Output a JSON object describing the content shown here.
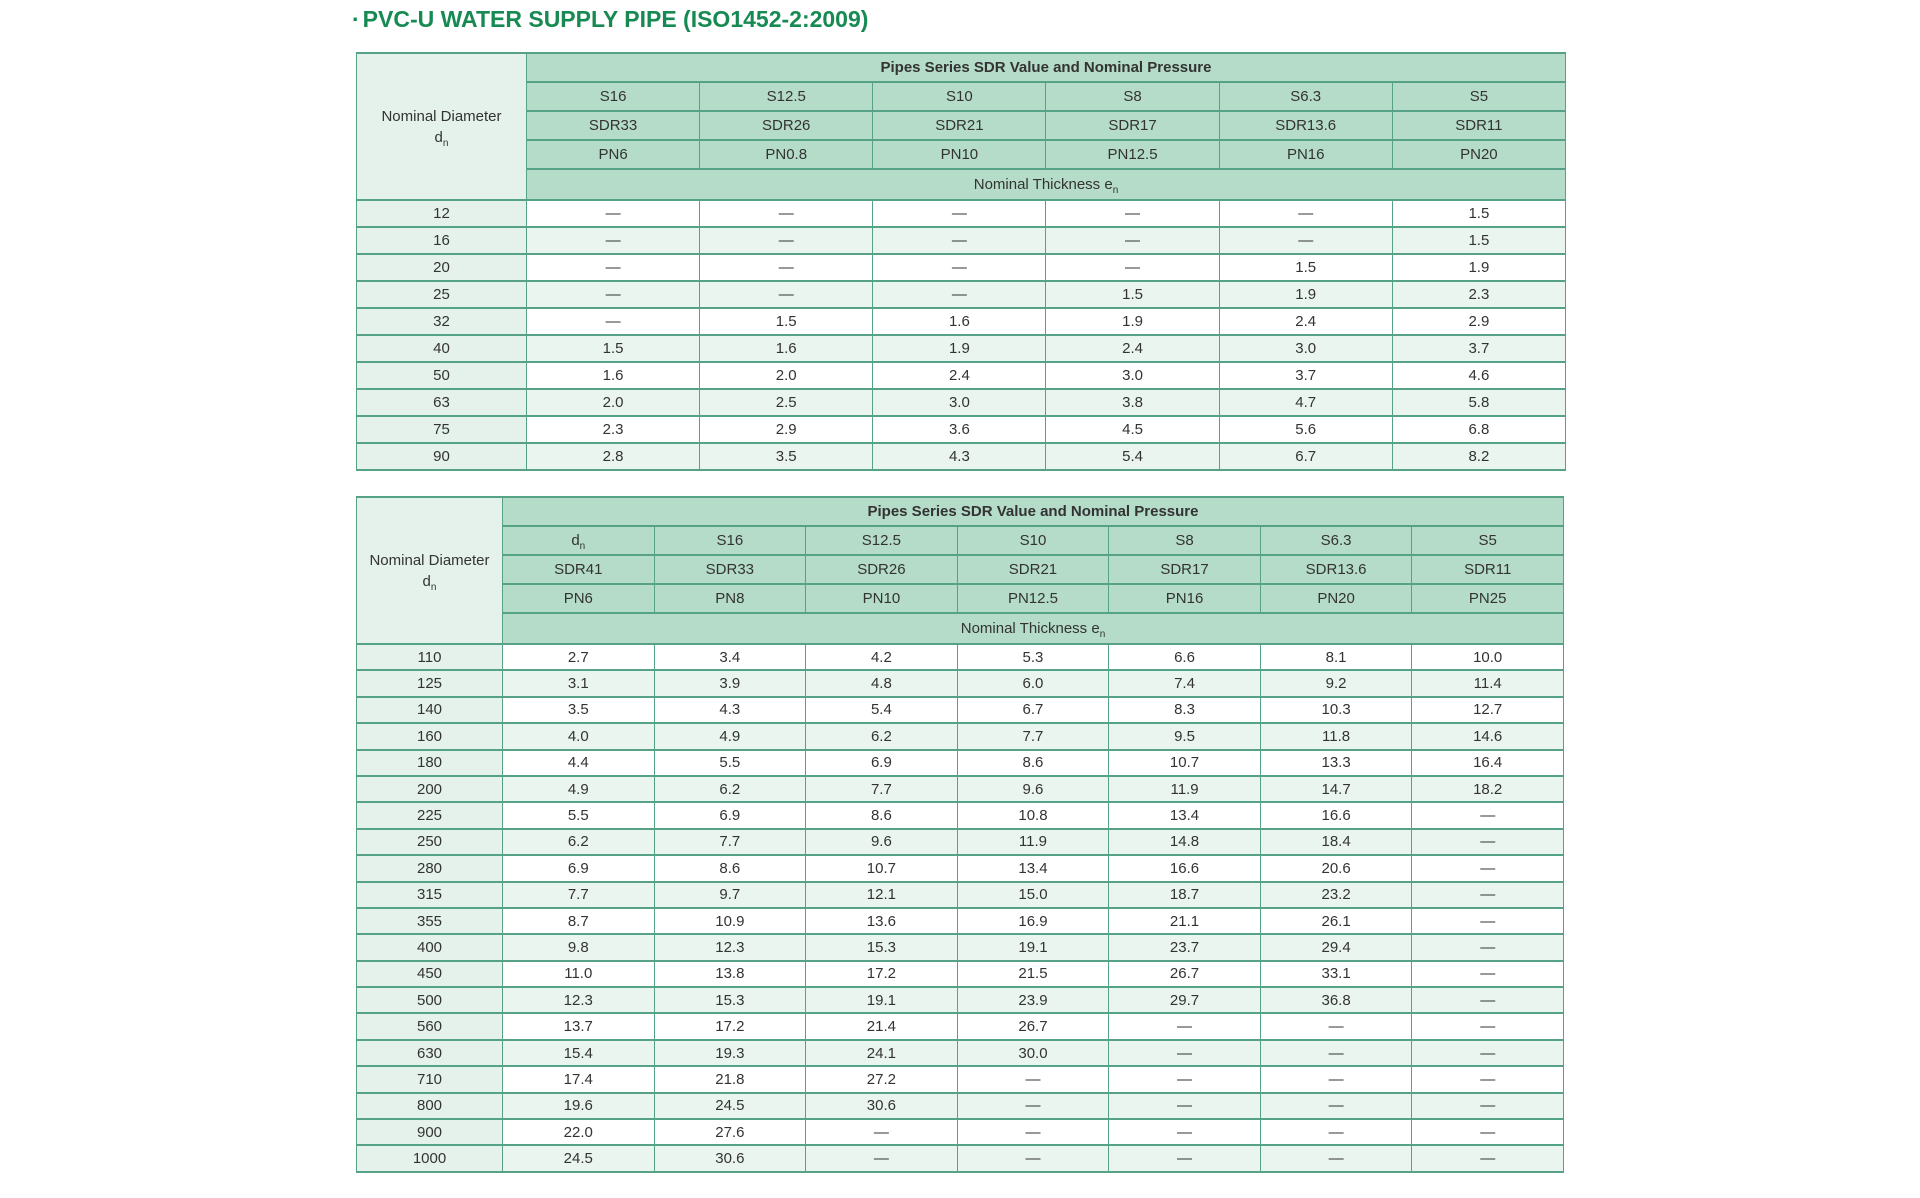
{
  "page": {
    "bullet": "·",
    "title": "PVC-U WATER SUPPLY PIPE (ISO1452-2:2009)"
  },
  "colors": {
    "title_green": "#168A52",
    "header_bg": "#B5DCC8",
    "left_col_bg": "#E5F2EC",
    "alt_row_bg": "#EAF5EF",
    "border": "#55A287",
    "text": "#333333"
  },
  "tables": [
    {
      "name": "small-diameters",
      "span_title": "Pipes Series SDR Value and Nominal Pressure",
      "left_header": {
        "line1": "Nominal Diameter",
        "symbol": "d",
        "subscript": "n"
      },
      "thickness_label": {
        "text": "Nominal Thickness ",
        "symbol": "e",
        "subscript": "n"
      },
      "series_row": [
        "S16",
        "S12.5",
        "S10",
        "S8",
        "S6.3",
        "S5"
      ],
      "sdr_row": [
        "SDR33",
        "SDR26",
        "SDR21",
        "SDR17",
        "SDR13.6",
        "SDR11"
      ],
      "pn_row": [
        "PN6",
        "PN0.8",
        "PN10",
        "PN12.5",
        "PN16",
        "PN20"
      ],
      "rows": [
        {
          "d": "12",
          "values": [
            "—",
            "—",
            "—",
            "—",
            "—",
            "1.5"
          ]
        },
        {
          "d": "16",
          "values": [
            "—",
            "—",
            "—",
            "—",
            "—",
            "1.5"
          ]
        },
        {
          "d": "20",
          "values": [
            "—",
            "—",
            "—",
            "—",
            "1.5",
            "1.9"
          ]
        },
        {
          "d": "25",
          "values": [
            "—",
            "—",
            "—",
            "1.5",
            "1.9",
            "2.3"
          ]
        },
        {
          "d": "32",
          "values": [
            "—",
            "1.5",
            "1.6",
            "1.9",
            "2.4",
            "2.9"
          ]
        },
        {
          "d": "40",
          "values": [
            "1.5",
            "1.6",
            "1.9",
            "2.4",
            "3.0",
            "3.7"
          ]
        },
        {
          "d": "50",
          "values": [
            "1.6",
            "2.0",
            "2.4",
            "3.0",
            "3.7",
            "4.6"
          ]
        },
        {
          "d": "63",
          "values": [
            "2.0",
            "2.5",
            "3.0",
            "3.8",
            "4.7",
            "5.8"
          ]
        },
        {
          "d": "75",
          "values": [
            "2.3",
            "2.9",
            "3.6",
            "4.5",
            "5.6",
            "6.8"
          ]
        },
        {
          "d": "90",
          "values": [
            "2.8",
            "3.5",
            "4.3",
            "5.4",
            "6.7",
            "8.2"
          ]
        }
      ]
    },
    {
      "name": "large-diameters",
      "span_title": "Pipes Series SDR Value and Nominal Pressure",
      "left_header": {
        "line1": "Nominal Diameter",
        "symbol": "d",
        "subscript": "n"
      },
      "thickness_label": {
        "text": "Nominal Thickness ",
        "symbol": "e",
        "subscript": "n"
      },
      "series_row": [
        {
          "t": "d",
          "sub": "n"
        },
        "S16",
        "S12.5",
        "S10",
        "S8",
        "S6.3",
        "S5"
      ],
      "sdr_row": [
        "SDR41",
        "SDR33",
        "SDR26",
        "SDR21",
        "SDR17",
        "SDR13.6",
        "SDR11"
      ],
      "pn_row": [
        "PN6",
        "PN8",
        "PN10",
        "PN12.5",
        "PN16",
        "PN20",
        "PN25"
      ],
      "rows": [
        {
          "d": "110",
          "values": [
            "2.7",
            "3.4",
            "4.2",
            "5.3",
            "6.6",
            "8.1",
            "10.0"
          ]
        },
        {
          "d": "125",
          "values": [
            "3.1",
            "3.9",
            "4.8",
            "6.0",
            "7.4",
            "9.2",
            "11.4"
          ]
        },
        {
          "d": "140",
          "values": [
            "3.5",
            "4.3",
            "5.4",
            "6.7",
            "8.3",
            "10.3",
            "12.7"
          ]
        },
        {
          "d": "160",
          "values": [
            "4.0",
            "4.9",
            "6.2",
            "7.7",
            "9.5",
            "11.8",
            "14.6"
          ]
        },
        {
          "d": "180",
          "values": [
            "4.4",
            "5.5",
            "6.9",
            "8.6",
            "10.7",
            "13.3",
            "16.4"
          ]
        },
        {
          "d": "200",
          "values": [
            "4.9",
            "6.2",
            "7.7",
            "9.6",
            "11.9",
            "14.7",
            "18.2"
          ]
        },
        {
          "d": "225",
          "values": [
            "5.5",
            "6.9",
            "8.6",
            "10.8",
            "13.4",
            "16.6",
            "—"
          ]
        },
        {
          "d": "250",
          "values": [
            "6.2",
            "7.7",
            "9.6",
            "11.9",
            "14.8",
            "18.4",
            "—"
          ]
        },
        {
          "d": "280",
          "values": [
            "6.9",
            "8.6",
            "10.7",
            "13.4",
            "16.6",
            "20.6",
            "—"
          ]
        },
        {
          "d": "315",
          "values": [
            "7.7",
            "9.7",
            "12.1",
            "15.0",
            "18.7",
            "23.2",
            "—"
          ]
        },
        {
          "d": "355",
          "values": [
            "8.7",
            "10.9",
            "13.6",
            "16.9",
            "21.1",
            "26.1",
            "—"
          ]
        },
        {
          "d": "400",
          "values": [
            "9.8",
            "12.3",
            "15.3",
            "19.1",
            "23.7",
            "29.4",
            "—"
          ]
        },
        {
          "d": "450",
          "values": [
            "11.0",
            "13.8",
            "17.2",
            "21.5",
            "26.7",
            "33.1",
            "—"
          ]
        },
        {
          "d": "500",
          "values": [
            "12.3",
            "15.3",
            "19.1",
            "23.9",
            "29.7",
            "36.8",
            "—"
          ]
        },
        {
          "d": "560",
          "values": [
            "13.7",
            "17.2",
            "21.4",
            "26.7",
            "—",
            "—",
            "—"
          ]
        },
        {
          "d": "630",
          "values": [
            "15.4",
            "19.3",
            "24.1",
            "30.0",
            "—",
            "—",
            "—"
          ]
        },
        {
          "d": "710",
          "values": [
            "17.4",
            "21.8",
            "27.2",
            "—",
            "—",
            "—",
            "—"
          ]
        },
        {
          "d": "800",
          "values": [
            "19.6",
            "24.5",
            "30.6",
            "—",
            "—",
            "—",
            "—"
          ]
        },
        {
          "d": "900",
          "values": [
            "22.0",
            "27.6",
            "—",
            "—",
            "—",
            "—",
            "—"
          ]
        },
        {
          "d": "1000",
          "values": [
            "24.5",
            "30.6",
            "—",
            "—",
            "—",
            "—",
            "—"
          ]
        }
      ]
    }
  ]
}
